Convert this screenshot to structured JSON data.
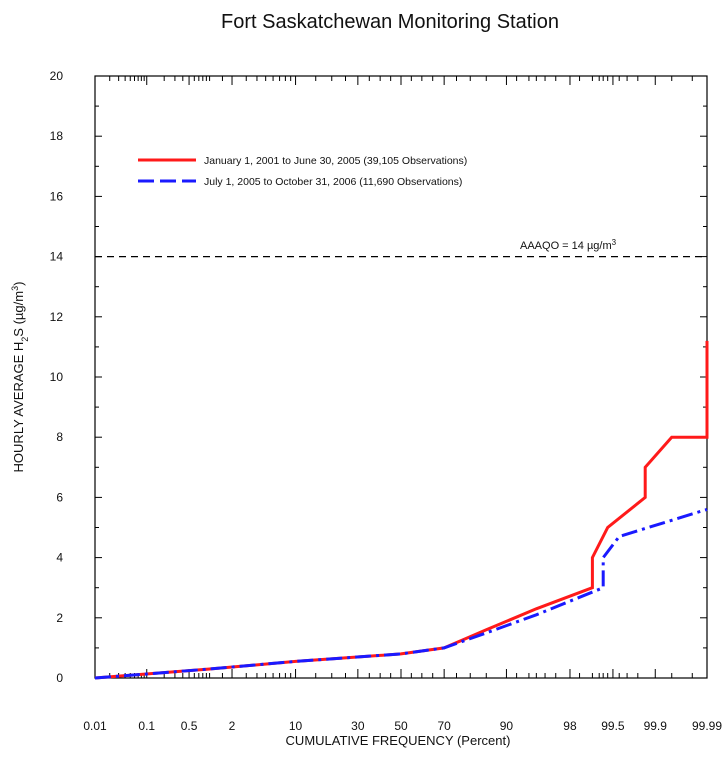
{
  "chart_data": {
    "type": "line",
    "title": "Fort Saskatchewan Monitoring Station",
    "xlabel": "CUMULATIVE FREQUENCY (Percent)",
    "ylabel_parts": [
      "HOURLY AVERAGE H",
      "2",
      "S (µg/m",
      "3",
      ")"
    ],
    "x_scale": "normal-probability",
    "x_ticks": [
      "0.01",
      "0.1",
      "0.5",
      "2",
      "10",
      "30",
      "50",
      "70",
      "90",
      "98",
      "99.5",
      "99.9",
      "99.99"
    ],
    "x_tick_values": [
      0.01,
      0.1,
      0.5,
      2,
      10,
      30,
      50,
      70,
      90,
      98,
      99.5,
      99.9,
      99.99
    ],
    "ylim": [
      0,
      20
    ],
    "y_ticks": [
      0,
      2,
      4,
      6,
      8,
      10,
      12,
      14,
      16,
      18,
      20
    ],
    "grid": false,
    "legend_position": "top-left",
    "series": [
      {
        "name": "January 1, 2001 to June 30, 2005 (39,105 Observations)",
        "color": "#ff1a1a",
        "dash": "solid",
        "x": [
          0.01,
          1,
          10,
          50,
          70,
          85,
          95,
          99.0,
          99.0,
          99.4,
          99.85,
          99.85,
          99.95,
          99.99,
          99.99
        ],
        "y": [
          0,
          0.3,
          0.55,
          0.8,
          1.0,
          1.6,
          2.3,
          3.0,
          4.0,
          5.0,
          6.0,
          7.0,
          8.0,
          8.0,
          11.2
        ]
      },
      {
        "name": "July 1, 2005 to October 31, 2006 (11,690 Observations)",
        "color": "#1a1aff",
        "dash": "dash-dot",
        "x": [
          0.01,
          1,
          10,
          50,
          70,
          85,
          95,
          99.3,
          99.3,
          99.6,
          99.99
        ],
        "y": [
          0,
          0.3,
          0.55,
          0.8,
          1.0,
          1.5,
          2.1,
          3.0,
          4.0,
          4.7,
          5.6
        ]
      }
    ],
    "reference_line": {
      "y": 14,
      "label_main": "AAAQO = 14 µg/m",
      "label_sup": "3",
      "style": "dashed",
      "color": "#000000"
    }
  }
}
